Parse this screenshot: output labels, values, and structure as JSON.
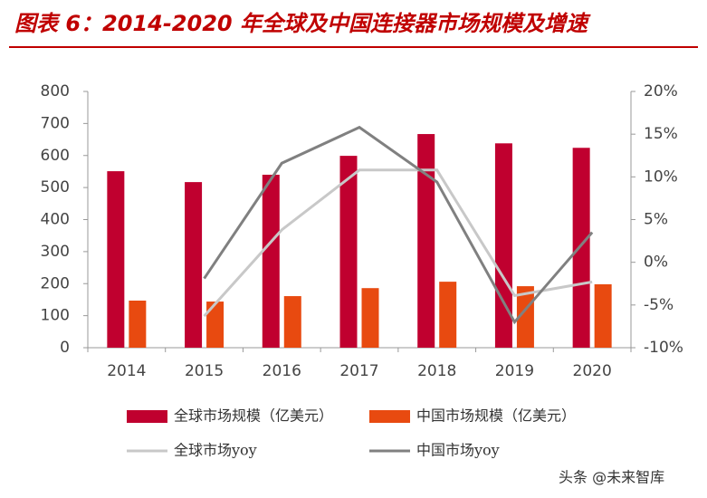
{
  "chart_data": {
    "type": "bar",
    "title": "图表 6：2014-2020 年全球及中国连接器市场规模及增速",
    "categories": [
      "2014",
      "2015",
      "2016",
      "2017",
      "2018",
      "2019",
      "2020"
    ],
    "series": [
      {
        "name": "全球市场规模（亿美元）",
        "type": "bar",
        "color": "#c0002f",
        "values": [
          551,
          517,
          540,
          599,
          667,
          638,
          624
        ]
      },
      {
        "name": "中国市场规模（亿美元）",
        "type": "bar",
        "color": "#e84a10",
        "values": [
          147,
          144,
          161,
          186,
          206,
          192,
          198
        ]
      },
      {
        "name": "全球市场yoy",
        "type": "line",
        "axis": "y2",
        "color": "#c8c8c8",
        "values": [
          null,
          -6.3,
          3.8,
          10.8,
          10.8,
          -3.9,
          -2.3
        ]
      },
      {
        "name": "中国市场yoy",
        "type": "line",
        "axis": "y2",
        "color": "#808080",
        "values": [
          null,
          -1.9,
          11.6,
          15.8,
          9.4,
          -7.0,
          3.5
        ]
      }
    ],
    "ylim": [
      0,
      800
    ],
    "yticks": [
      0,
      100,
      200,
      300,
      400,
      500,
      600,
      700,
      800
    ],
    "y2lim": [
      -10,
      20
    ],
    "y2ticks": [
      {
        "value": -10,
        "label": "-10%"
      },
      {
        "value": -5,
        "label": "-5%"
      },
      {
        "value": 0,
        "label": "0%"
      },
      {
        "value": 5,
        "label": "5%"
      },
      {
        "value": 10,
        "label": "10%"
      },
      {
        "value": 15,
        "label": "15%"
      },
      {
        "value": 20,
        "label": "20%"
      }
    ],
    "watermark": "头条 @未来智库"
  }
}
